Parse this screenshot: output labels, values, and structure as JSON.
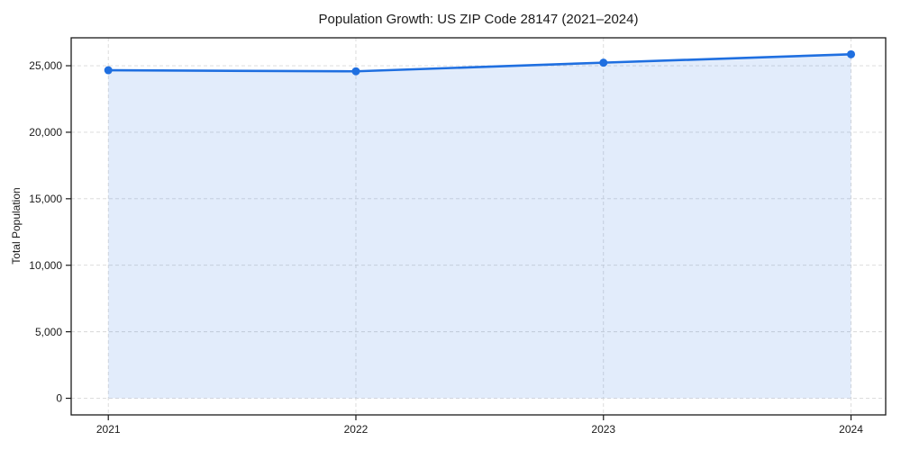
{
  "chart_data": {
    "type": "area",
    "title": "Population Growth: US ZIP Code 28147 (2021–2024)",
    "xlabel": "",
    "ylabel": "Total Population",
    "x": [
      2021,
      2022,
      2023,
      2024
    ],
    "series": [
      {
        "name": "Total Population",
        "values": [
          24660,
          24580,
          25230,
          25860
        ]
      }
    ],
    "xticks": [
      2021,
      2022,
      2023,
      2024
    ],
    "xtick_labels": [
      "2021",
      "2022",
      "2023",
      "2024"
    ],
    "yticks": [
      0,
      5000,
      10000,
      15000,
      20000,
      25000
    ],
    "ytick_labels": [
      "0",
      "5,000",
      "10,000",
      "15,000",
      "20,000",
      "25,000"
    ],
    "xlim": [
      2020.85,
      2024.14
    ],
    "ylim": [
      -1250,
      27100
    ],
    "fill_baseline": 0,
    "grid": true,
    "grid_style": "dashed",
    "legend": "none",
    "marker": "circle",
    "colors": {
      "line": "#1f6fe0",
      "fill": "rgba(31, 111, 224, 0.13)",
      "grid": "#d8d8d8",
      "spine": "#1a1a1a",
      "text": "#1a1a1a",
      "background": "#ffffff"
    }
  }
}
